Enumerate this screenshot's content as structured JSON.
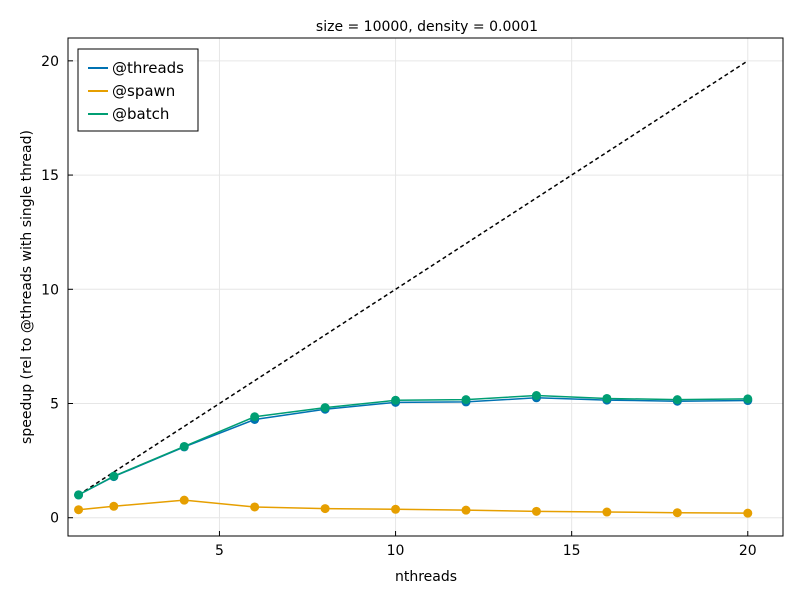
{
  "chart_data": {
    "type": "line",
    "title": "size = 10000, density = 0.0001",
    "xlabel": "nthreads",
    "ylabel": "speedup (rel to @threads with single thread)",
    "xlim": [
      0.7,
      21.0
    ],
    "ylim": [
      -0.8,
      21.0
    ],
    "xticks": [
      5,
      10,
      15,
      20
    ],
    "yticks": [
      0,
      5,
      10,
      15,
      20
    ],
    "grid": true,
    "legend_position": "top-left",
    "x": [
      1,
      2,
      4,
      6,
      8,
      10,
      12,
      14,
      16,
      18,
      20
    ],
    "series": [
      {
        "name": "@threads",
        "color": "#0072b2",
        "values": [
          1.0,
          1.8,
          3.1,
          4.3,
          4.75,
          5.05,
          5.07,
          5.25,
          5.15,
          5.1,
          5.13
        ]
      },
      {
        "name": "@spawn",
        "color": "#e69f00",
        "values": [
          0.35,
          0.5,
          0.77,
          0.47,
          0.4,
          0.37,
          0.33,
          0.28,
          0.25,
          0.22,
          0.2
        ]
      },
      {
        "name": "@batch",
        "color": "#009e73",
        "values": [
          1.0,
          1.82,
          3.12,
          4.42,
          4.82,
          5.14,
          5.17,
          5.35,
          5.22,
          5.17,
          5.2
        ]
      }
    ],
    "reference_line": {
      "style": "dashed",
      "color": "#000000",
      "x": [
        1,
        20
      ],
      "y": [
        1,
        20
      ]
    }
  }
}
